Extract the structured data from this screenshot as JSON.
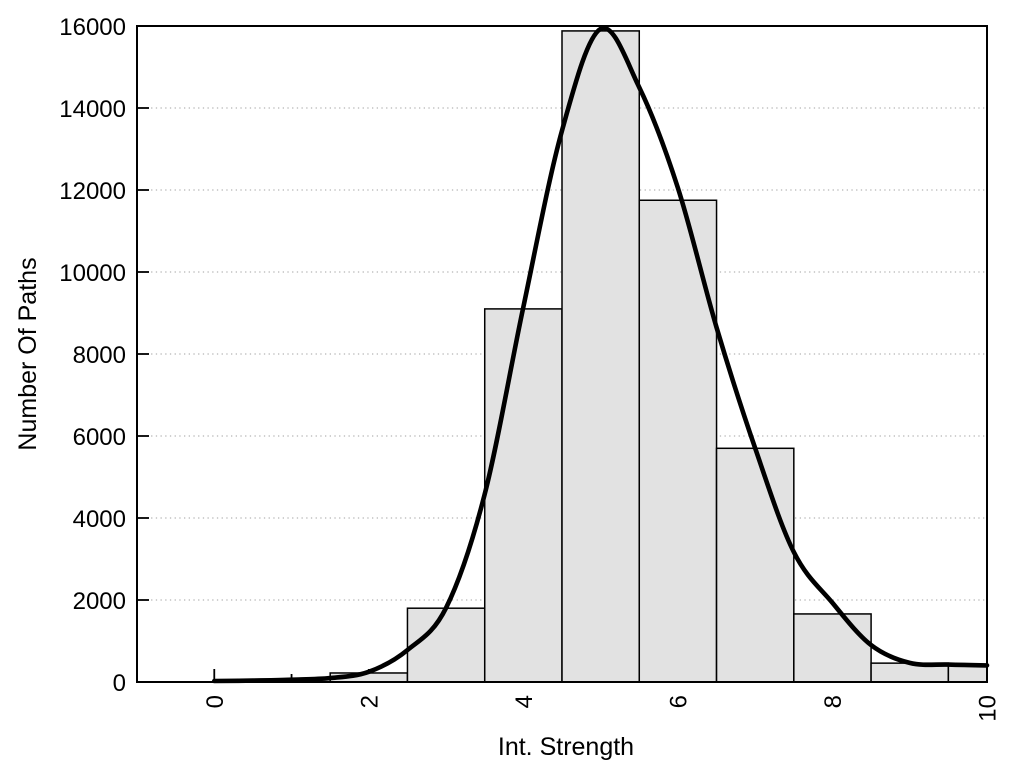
{
  "chart_data": {
    "type": "bar",
    "subtype": "histogram-with-fit-curve",
    "title": "",
    "xlabel": "Int. Strength",
    "ylabel": "Number Of Paths",
    "xlim": [
      -1,
      10
    ],
    "ylim": [
      0,
      16000
    ],
    "x_major_ticks": [
      0,
      2,
      4,
      6,
      8,
      10
    ],
    "x_minor_ticks": [
      1,
      3,
      5,
      7,
      9
    ],
    "y_major_ticks": [
      0,
      2000,
      4000,
      6000,
      8000,
      10000,
      12000,
      14000,
      16000
    ],
    "x_tick_label_rotation_deg": -90,
    "grid": {
      "horizontal": true,
      "vertical": false,
      "style": "dotted",
      "at": [
        2000,
        4000,
        6000,
        8000,
        10000,
        12000,
        14000
      ]
    },
    "legend": null,
    "bars": {
      "bin_edges": [
        1.5,
        2.5,
        3.5,
        4.5,
        5.5,
        6.5,
        7.5,
        8.5,
        9.5,
        10
      ],
      "counts": [
        220,
        1800,
        9100,
        15880,
        11750,
        5700,
        1660,
        460,
        400
      ]
    },
    "curve": {
      "description": "smooth fitted density curve",
      "points": [
        [
          0,
          25
        ],
        [
          0.5,
          35
        ],
        [
          1,
          55
        ],
        [
          1.5,
          95
        ],
        [
          2,
          250
        ],
        [
          2.5,
          780
        ],
        [
          3,
          1810
        ],
        [
          3.5,
          4580
        ],
        [
          4,
          9150
        ],
        [
          4.5,
          13450
        ],
        [
          5,
          15930
        ],
        [
          5.5,
          14500
        ],
        [
          6,
          12050
        ],
        [
          6.5,
          8650
        ],
        [
          7,
          5700
        ],
        [
          7.5,
          3170
        ],
        [
          8,
          1930
        ],
        [
          8.5,
          900
        ],
        [
          9,
          465
        ],
        [
          9.5,
          425
        ],
        [
          10,
          405
        ]
      ]
    },
    "colors": {
      "bar_fill": "#e2e2e2",
      "bar_stroke": "#000000",
      "curve": "#000000",
      "frame": "#000000",
      "grid": "#b3b3b3",
      "text": "#000000",
      "background": "#ffffff"
    }
  }
}
